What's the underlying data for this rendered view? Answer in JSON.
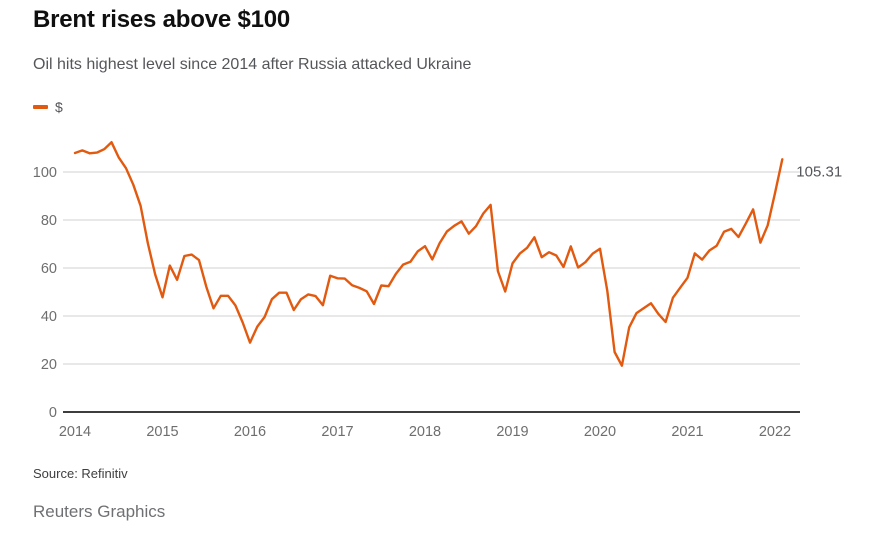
{
  "header": {
    "title": "Brent rises above $100",
    "subtitle": "Oil hits highest level since 2014 after Russia attacked Ukraine"
  },
  "legend": {
    "series_label": "$",
    "swatch_color": "#e25a10"
  },
  "chart_data": {
    "type": "line",
    "title": "Brent rises above $100",
    "subtitle": "Oil hits highest level since 2014 after Russia attacked Ukraine",
    "ylabel": "$",
    "xlabel": "",
    "grid": "horizontal",
    "legend_position": "top-left",
    "x_ticks": [
      2014,
      2015,
      2016,
      2017,
      2018,
      2019,
      2020,
      2021,
      2022
    ],
    "y_ticks": [
      0,
      20,
      40,
      60,
      80,
      100
    ],
    "ylim": [
      0,
      118
    ],
    "x_start_year": 2014,
    "x_step": "1 month",
    "end_label": "105.31",
    "last_value": 105.31,
    "series": [
      {
        "name": "$",
        "color": "#e25a10",
        "values": [
          107.9,
          109.0,
          107.8,
          108.1,
          109.5,
          112.4,
          106.0,
          101.6,
          94.7,
          85.9,
          70.2,
          57.3,
          47.8,
          61.0,
          55.1,
          65.0,
          65.6,
          63.3,
          52.2,
          43.2,
          48.4,
          48.4,
          44.4,
          37.3,
          28.9,
          35.6,
          39.6,
          47.0,
          49.7,
          49.7,
          42.5,
          47.0,
          49.0,
          48.3,
          44.5,
          56.8,
          55.7,
          55.6,
          52.8,
          51.7,
          50.3,
          45.0,
          52.7,
          52.4,
          57.5,
          61.4,
          62.6,
          66.9,
          69.1,
          63.6,
          70.3,
          75.2,
          77.6,
          79.4,
          74.3,
          77.4,
          82.7,
          86.3,
          58.7,
          50.2,
          61.9,
          66.0,
          68.4,
          72.8,
          64.5,
          66.6,
          65.2,
          60.4,
          69.0,
          60.2,
          62.4,
          66.0,
          68.0,
          50.5,
          25.0,
          19.3,
          35.3,
          41.2,
          43.3,
          45.3,
          40.9,
          37.5,
          47.6,
          51.8,
          55.9,
          66.1,
          63.5,
          67.3,
          69.3,
          75.1,
          76.3,
          72.9,
          78.5,
          84.4,
          70.6,
          77.8,
          91.2,
          105.31
        ]
      }
    ]
  },
  "footer": {
    "source": "Source: Refinitiv",
    "credit": "Reuters Graphics"
  }
}
